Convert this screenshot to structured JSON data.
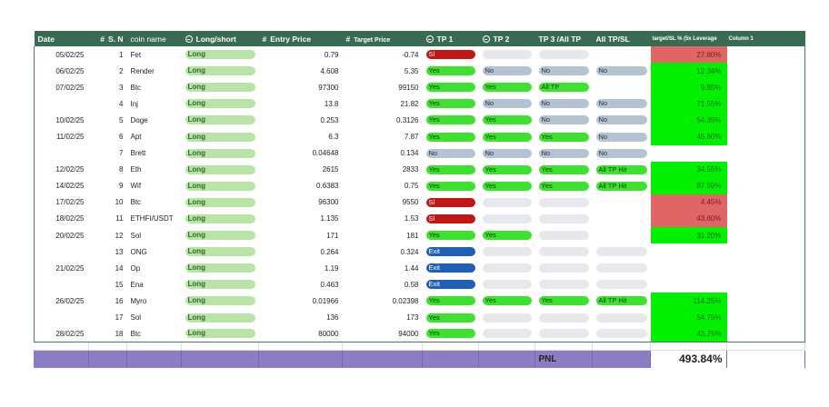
{
  "headers": {
    "date": "Date",
    "sn": "S. N",
    "coin": "coin name",
    "ls": "Long/short",
    "entry": "Entry Price",
    "target": "Target Price",
    "tp1": "TP 1",
    "tp2": "TP 2",
    "tp3": "TP 3 /All TP",
    "alltp": "All TP/SL",
    "pct": "target/SL % (5x Leverage",
    "col1": "Column 1"
  },
  "rows": [
    {
      "date": "05/02/25",
      "sn": "1",
      "coin": "Fet",
      "ls": "Long",
      "entry": "0.79",
      "target": "-0.74",
      "tp1": "Sl",
      "tp2": "",
      "tp3": "",
      "all": "",
      "pct": "27.80%",
      "pct_color": "red"
    },
    {
      "date": "06/02/25",
      "sn": "2",
      "coin": "Render",
      "ls": "Long",
      "entry": "4.608",
      "target": "5.35",
      "tp1": "Yes",
      "tp2": "No",
      "tp3": "No",
      "all": "No",
      "pct": "12.34%",
      "pct_color": "green"
    },
    {
      "date": "07/02/25",
      "sn": "3",
      "coin": "Btc",
      "ls": "Long",
      "entry": "97300",
      "target": "99150",
      "tp1": "Yes",
      "tp2": "Yes",
      "tp3": "All TP",
      "all": "",
      "pct": "9.85%",
      "pct_color": "green"
    },
    {
      "date": "",
      "sn": "4",
      "coin": "Inj",
      "ls": "Long",
      "entry": "13.8",
      "target": "21.82",
      "tp1": "Yes",
      "tp2": "No",
      "tp3": "No",
      "all": "No",
      "pct": "71.55%",
      "pct_color": "green"
    },
    {
      "date": "10/02/25",
      "sn": "5",
      "coin": "Doge",
      "ls": "Long",
      "entry": "0.253",
      "target": "0.3126",
      "tp1": "Yes",
      "tp2": "Yes",
      "tp3": "No",
      "all": "No",
      "pct": "54.35%",
      "pct_color": "green"
    },
    {
      "date": "11/02/25",
      "sn": "6",
      "coin": "Apt",
      "ls": "Long",
      "entry": "6.3",
      "target": "7.87",
      "tp1": "Yes",
      "tp2": "Yes",
      "tp3": "Yes",
      "all": "No",
      "pct": "45.60%",
      "pct_color": "green"
    },
    {
      "date": "",
      "sn": "7",
      "coin": "Brett",
      "ls": "Long",
      "entry": "0.04648",
      "target": "0.134",
      "tp1": "No",
      "tp2": "No",
      "tp3": "No",
      "all": "No",
      "pct": "",
      "pct_color": ""
    },
    {
      "date": "12/02/25",
      "sn": "8",
      "coin": "Eth",
      "ls": "Long",
      "entry": "2615",
      "target": "2833",
      "tp1": "Yes",
      "tp2": "Yes",
      "tp3": "Yes",
      "all": "All TP Hit",
      "pct": "34.55%",
      "pct_color": "green"
    },
    {
      "date": "14/02/25",
      "sn": "9",
      "coin": "Wif",
      "ls": "Long",
      "entry": "0.6383",
      "target": "0.75",
      "tp1": "Yes",
      "tp2": "Yes",
      "tp3": "Yes",
      "all": "All TP Hit",
      "pct": "87.59%",
      "pct_color": "green"
    },
    {
      "date": "17/02/25",
      "sn": "10",
      "coin": "Btc",
      "ls": "Long",
      "entry": "96300",
      "target": "9550",
      "tp1": "Sl",
      "tp2": "",
      "tp3": "",
      "all": "",
      "pct": "4.45%",
      "pct_color": "red"
    },
    {
      "date": "18/02/25",
      "sn": "11",
      "coin": "ETHFI/USDT",
      "ls": "Long",
      "entry": "1.135",
      "target": "1.53",
      "tp1": "Sl",
      "tp2": "",
      "tp3": "",
      "all": "",
      "pct": "43.60%",
      "pct_color": "red"
    },
    {
      "date": "20/02/25",
      "sn": "12",
      "coin": "Sol",
      "ls": "Long",
      "entry": "171",
      "target": "181",
      "tp1": "Yes",
      "tp2": "Yes",
      "tp3": "",
      "all": "",
      "pct": "31.20%",
      "pct_color": "green"
    },
    {
      "date": "",
      "sn": "13",
      "coin": "ONG",
      "ls": "Long",
      "entry": "0.264",
      "target": "0.324",
      "tp1": "Exit",
      "tp2": "",
      "tp3": "",
      "all": "",
      "pct": "",
      "pct_color": ""
    },
    {
      "date": "21/02/25",
      "sn": "14",
      "coin": "Op",
      "ls": "Long",
      "entry": "1.19",
      "target": "1.44",
      "tp1": "Exit",
      "tp2": "",
      "tp3": "",
      "all": "",
      "pct": "",
      "pct_color": ""
    },
    {
      "date": "",
      "sn": "15",
      "coin": "Ena",
      "ls": "Long",
      "entry": "0.463",
      "target": "0.58",
      "tp1": "Exit",
      "tp2": "",
      "tp3": "",
      "all": "",
      "pct": "",
      "pct_color": ""
    },
    {
      "date": "26/02/25",
      "sn": "16",
      "coin": "Myro",
      "ls": "Long",
      "entry": "0.01966",
      "target": "0.02398",
      "tp1": "Yes",
      "tp2": "Yes",
      "tp3": "Yes",
      "all": "All TP Hit",
      "pct": "114.25%",
      "pct_color": "green"
    },
    {
      "date": "",
      "sn": "17",
      "coin": "Sol",
      "ls": "Long",
      "entry": "136",
      "target": "173",
      "tp1": "Yes",
      "tp2": "",
      "tp3": "",
      "all": "",
      "pct": "54.75%",
      "pct_color": "green"
    },
    {
      "date": "28/02/25",
      "sn": "18",
      "coin": "Btc",
      "ls": "Long",
      "entry": "80000",
      "target": "94000",
      "tp1": "Yes",
      "tp2": "",
      "tp3": "",
      "all": "",
      "pct": "43.75%",
      "pct_color": "green"
    }
  ],
  "summary": {
    "label": "PNL",
    "value": "493.84%"
  },
  "colors": {
    "header_bg": "#396b50",
    "yes": "#3ee12f",
    "no": "#b4c3d4",
    "sl": "#c01616",
    "exit": "#1f5fb5",
    "long": "#b8e4a8",
    "pct_green": "#00f000",
    "pct_red": "#e06666",
    "pnl_bar": "#8e7cc3"
  }
}
